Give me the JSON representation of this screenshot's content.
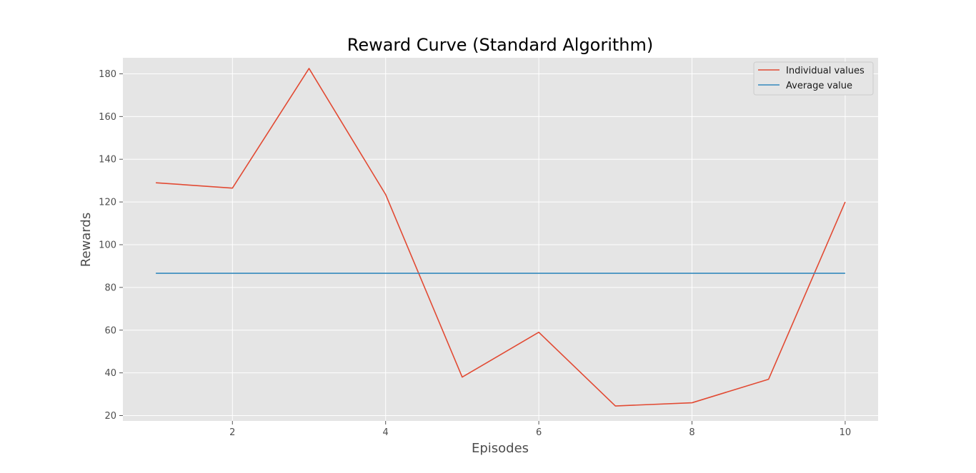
{
  "chart_data": {
    "type": "line",
    "title": "Reward Curve (Standard Algorithm)",
    "xlabel": "Episodes",
    "ylabel": "Rewards",
    "xlim": [
      0.57,
      10.43
    ],
    "ylim": [
      17.5,
      187.5
    ],
    "x_ticks": [
      2,
      4,
      6,
      8,
      10
    ],
    "y_ticks": [
      20,
      40,
      60,
      80,
      100,
      120,
      140,
      160,
      180
    ],
    "grid": true,
    "legend_position": "top-right",
    "x": [
      1,
      2,
      3,
      4,
      5,
      6,
      7,
      8,
      9,
      10
    ],
    "series": [
      {
        "name": "Individual values",
        "color": "#E24A33",
        "values": [
          129.0,
          126.5,
          182.5,
          123.5,
          38.0,
          59.0,
          24.5,
          26.0,
          37.0,
          120.0
        ]
      },
      {
        "name": "Average value",
        "color": "#348ABD",
        "values": [
          86.6,
          86.6,
          86.6,
          86.6,
          86.6,
          86.6,
          86.6,
          86.6,
          86.6,
          86.6
        ]
      }
    ],
    "colors": {
      "plot_background": "#E5E5E5",
      "grid": "#FFFFFF",
      "text": "#4D4D4D"
    }
  }
}
